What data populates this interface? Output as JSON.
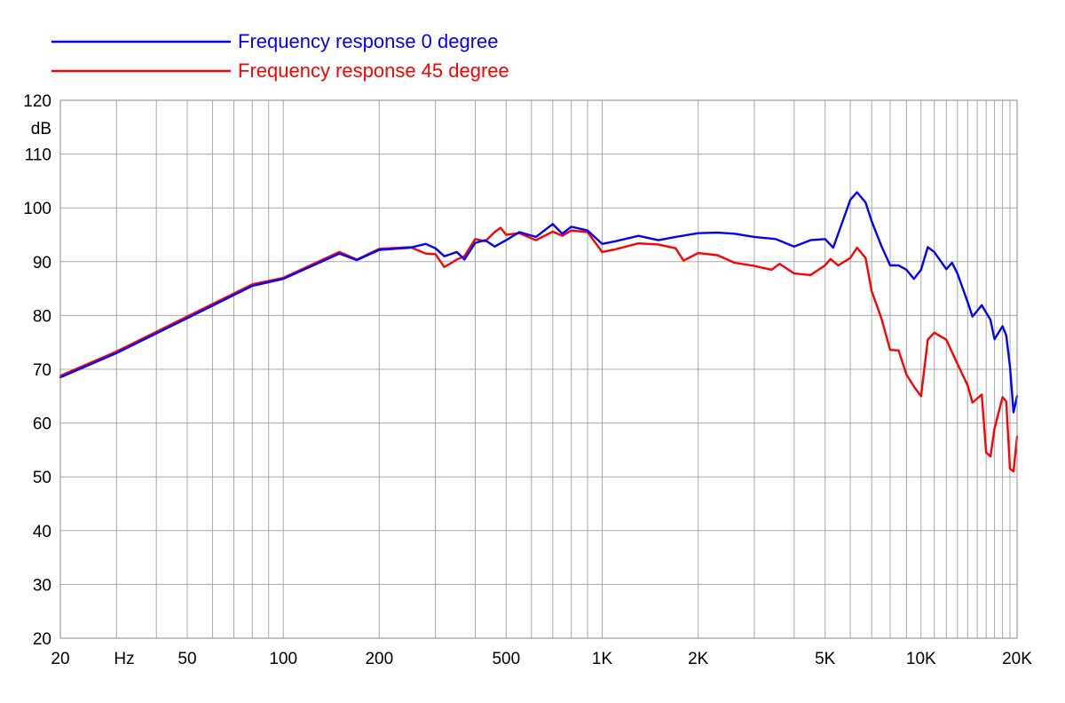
{
  "chart_data": {
    "type": "line",
    "title": "",
    "xlabel": "Hz",
    "ylabel": "dB",
    "x_scale": "log",
    "xlim": [
      20,
      20000
    ],
    "ylim": [
      20,
      120
    ],
    "grid": true,
    "legend_position": "top-left",
    "x_tick_labels": [
      {
        "value": 20,
        "label": "20"
      },
      {
        "value": 50,
        "label": "50"
      },
      {
        "value": 100,
        "label": "100"
      },
      {
        "value": 200,
        "label": "200"
      },
      {
        "value": 500,
        "label": "500"
      },
      {
        "value": 1000,
        "label": "1K"
      },
      {
        "value": 2000,
        "label": "2K"
      },
      {
        "value": 5000,
        "label": "5K"
      },
      {
        "value": 10000,
        "label": "10K"
      },
      {
        "value": 20000,
        "label": "20K"
      }
    ],
    "y_ticks": [
      20,
      30,
      40,
      50,
      60,
      70,
      80,
      90,
      100,
      110,
      120
    ],
    "series": [
      {
        "name": "Frequency response 0 degree",
        "color": "#0000ff",
        "points": [
          [
            20,
            68.5
          ],
          [
            30,
            73
          ],
          [
            50,
            79.5
          ],
          [
            80,
            85.5
          ],
          [
            100,
            86.8
          ],
          [
            150,
            91.5
          ],
          [
            170,
            90.3
          ],
          [
            200,
            92.2
          ],
          [
            250,
            92.6
          ],
          [
            280,
            93.3
          ],
          [
            300,
            92.5
          ],
          [
            320,
            91
          ],
          [
            350,
            91.8
          ],
          [
            370,
            90.4
          ],
          [
            400,
            93.5
          ],
          [
            430,
            94
          ],
          [
            460,
            92.8
          ],
          [
            500,
            94
          ],
          [
            550,
            95.5
          ],
          [
            620,
            94.6
          ],
          [
            700,
            97
          ],
          [
            750,
            95.2
          ],
          [
            800,
            96.5
          ],
          [
            900,
            95.8
          ],
          [
            1000,
            93.3
          ],
          [
            1100,
            93.8
          ],
          [
            1300,
            94.8
          ],
          [
            1500,
            94
          ],
          [
            1700,
            94.6
          ],
          [
            2000,
            95.3
          ],
          [
            2300,
            95.4
          ],
          [
            2600,
            95.2
          ],
          [
            3000,
            94.6
          ],
          [
            3500,
            94.2
          ],
          [
            4000,
            92.8
          ],
          [
            4500,
            94
          ],
          [
            5000,
            94.2
          ],
          [
            5300,
            92.6
          ],
          [
            5600,
            96.5
          ],
          [
            6000,
            101.5
          ],
          [
            6300,
            102.9
          ],
          [
            6700,
            101
          ],
          [
            7000,
            97.5
          ],
          [
            7500,
            93
          ],
          [
            8000,
            89.3
          ],
          [
            8500,
            89.3
          ],
          [
            9000,
            88.5
          ],
          [
            9500,
            86.8
          ],
          [
            10000,
            88.5
          ],
          [
            10500,
            92.7
          ],
          [
            11000,
            91.8
          ],
          [
            12000,
            88.6
          ],
          [
            12500,
            89.8
          ],
          [
            13000,
            87.8
          ],
          [
            14000,
            82.5
          ],
          [
            14500,
            79.8
          ],
          [
            15500,
            81.9
          ],
          [
            16500,
            79.2
          ],
          [
            17000,
            75.6
          ],
          [
            18000,
            78
          ],
          [
            18500,
            76.3
          ],
          [
            19000,
            70.5
          ],
          [
            19500,
            62
          ],
          [
            20000,
            65
          ]
        ]
      },
      {
        "name": "Frequency response 45 degree",
        "color": "#ff0000",
        "points": [
          [
            20,
            68.8
          ],
          [
            30,
            73.3
          ],
          [
            50,
            79.8
          ],
          [
            80,
            85.8
          ],
          [
            100,
            87
          ],
          [
            150,
            91.8
          ],
          [
            170,
            90.4
          ],
          [
            200,
            92.4
          ],
          [
            250,
            92.7
          ],
          [
            280,
            91.5
          ],
          [
            300,
            91.4
          ],
          [
            320,
            89
          ],
          [
            350,
            90.4
          ],
          [
            370,
            91
          ],
          [
            400,
            94.2
          ],
          [
            430,
            93.8
          ],
          [
            460,
            95.5
          ],
          [
            480,
            96.3
          ],
          [
            500,
            95
          ],
          [
            550,
            95.3
          ],
          [
            620,
            94
          ],
          [
            700,
            95.6
          ],
          [
            750,
            94.8
          ],
          [
            800,
            95.8
          ],
          [
            900,
            95.5
          ],
          [
            1000,
            91.8
          ],
          [
            1100,
            92.3
          ],
          [
            1300,
            93.4
          ],
          [
            1500,
            93.2
          ],
          [
            1700,
            92.5
          ],
          [
            1800,
            90.2
          ],
          [
            2000,
            91.6
          ],
          [
            2300,
            91.2
          ],
          [
            2600,
            89.8
          ],
          [
            3000,
            89.2
          ],
          [
            3400,
            88.5
          ],
          [
            3600,
            89.6
          ],
          [
            4000,
            87.8
          ],
          [
            4500,
            87.5
          ],
          [
            5000,
            89.3
          ],
          [
            5200,
            90.5
          ],
          [
            5500,
            89.3
          ],
          [
            6000,
            90.7
          ],
          [
            6300,
            92.6
          ],
          [
            6700,
            90.7
          ],
          [
            7000,
            84.5
          ],
          [
            7500,
            79.6
          ],
          [
            8000,
            73.6
          ],
          [
            8500,
            73.5
          ],
          [
            9000,
            69
          ],
          [
            9500,
            66.8
          ],
          [
            10000,
            65
          ],
          [
            10500,
            75.5
          ],
          [
            11000,
            76.8
          ],
          [
            12000,
            75.5
          ],
          [
            13000,
            71
          ],
          [
            14000,
            67
          ],
          [
            14500,
            63.8
          ],
          [
            15500,
            65.3
          ],
          [
            16000,
            54.5
          ],
          [
            16500,
            53.8
          ],
          [
            17000,
            59
          ],
          [
            18000,
            64.8
          ],
          [
            18500,
            64
          ],
          [
            19000,
            51.5
          ],
          [
            19500,
            51
          ],
          [
            20000,
            57.5
          ]
        ]
      }
    ]
  }
}
